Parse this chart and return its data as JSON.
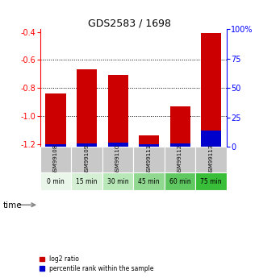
{
  "title": "GDS2583 / 1698",
  "categories": [
    "GSM99108",
    "GSM99109",
    "GSM99110",
    "GSM99111",
    "GSM99112",
    "GSM99113"
  ],
  "time_labels": [
    "0 min",
    "15 min",
    "30 min",
    "45 min",
    "60 min",
    "75 min"
  ],
  "log2_values": [
    -0.84,
    -0.665,
    -0.705,
    -1.14,
    -0.93,
    -0.405
  ],
  "percentile_values": [
    2.5,
    3.0,
    3.5,
    2.0,
    3.0,
    14.0
  ],
  "ylim_left": [
    -1.22,
    -0.38
  ],
  "ylim_right": [
    0,
    100
  ],
  "yticks_left": [
    -1.2,
    -1.0,
    -0.8,
    -0.6,
    -0.4
  ],
  "yticks_right": [
    0,
    25,
    50,
    75,
    100
  ],
  "bar_color": "#cc0000",
  "percentile_color": "#0000cc",
  "title_fontsize": 9,
  "time_bg_colors": [
    "#eaf6ea",
    "#d4efd4",
    "#b8e8b8",
    "#90d890",
    "#60c860",
    "#38be38"
  ],
  "gsm_bg_color": "#c8c8c8",
  "legend_label_red": "log2 ratio",
  "legend_label_blue": "percentile rank within the sample"
}
